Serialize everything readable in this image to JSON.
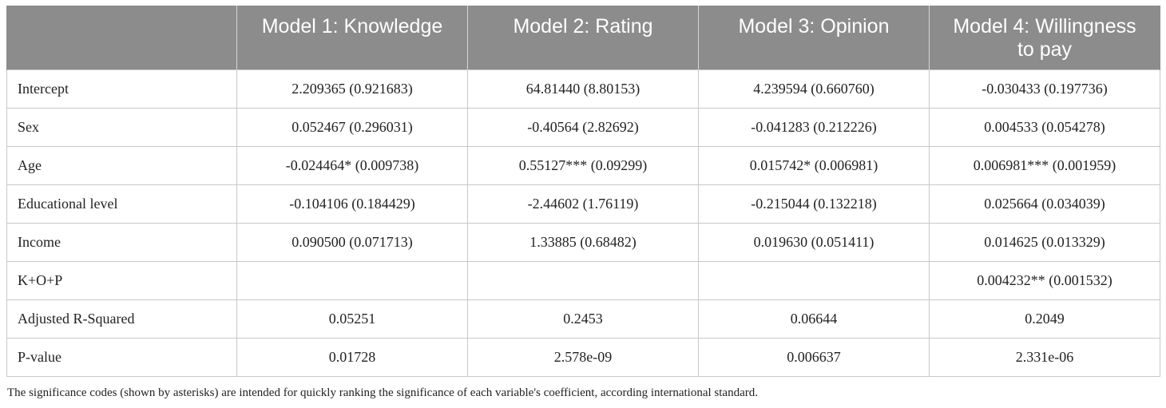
{
  "table": {
    "headers": [
      "",
      "Model 1: Knowledge",
      "Model 2: Rating",
      "Model 3: Opinion",
      "Model 4: Willingness to pay"
    ],
    "rows": [
      {
        "label": "Intercept",
        "m1": "2.209365 (0.921683)",
        "m2": "64.81440 (8.80153)",
        "m3": "4.239594 (0.660760)",
        "m4": "-0.030433 (0.197736)"
      },
      {
        "label": "Sex",
        "m1": "0.052467 (0.296031)",
        "m2": "-0.40564 (2.82692)",
        "m3": "-0.041283 (0.212226)",
        "m4": "0.004533 (0.054278)"
      },
      {
        "label": "Age",
        "m1": "-0.024464* (0.009738)",
        "m2": "0.55127*** (0.09299)",
        "m3": "0.015742* (0.006981)",
        "m4": "0.006981*** (0.001959)"
      },
      {
        "label": "Educational level",
        "m1": "-0.104106 (0.184429)",
        "m2": "-2.44602 (1.76119)",
        "m3": "-0.215044 (0.132218)",
        "m4": "0.025664 (0.034039)"
      },
      {
        "label": "Income",
        "m1": "0.090500 (0.071713)",
        "m2": "1.33885 (0.68482)",
        "m3": "0.019630 (0.051411)",
        "m4": "0.014625 (0.013329)"
      },
      {
        "label": "K+O+P",
        "m1": "",
        "m2": "",
        "m3": "",
        "m4": "0.004232** (0.001532)"
      },
      {
        "label": "Adjusted R-Squared",
        "m1": "0.05251",
        "m2": "0.2453",
        "m3": "0.06644",
        "m4": "0.2049"
      },
      {
        "label": "P-value",
        "m1": "0.01728",
        "m2": "2.578e-09",
        "m3": "0.006637",
        "m4": "2.331e-06"
      }
    ]
  },
  "footnote": "The significance codes (shown by asterisks) are intended for quickly ranking the significance of each variable's coefficient, according international standard.",
  "colors": {
    "header_bg": "#8c8c8c",
    "header_text": "#ffffff",
    "grid": "#c8c8c8",
    "text": "#222222"
  }
}
